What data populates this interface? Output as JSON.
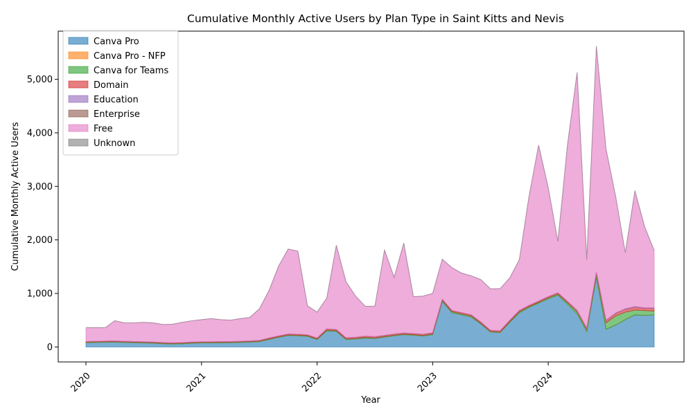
{
  "chart_data": {
    "type": "area",
    "stacked": true,
    "title": "Cumulative Monthly Active Users by Plan Type in Saint Kitts and Nevis",
    "xlabel": "Year",
    "ylabel": "Cumulative Monthly Active Users",
    "x_tick_labels": [
      "2020",
      "2021",
      "2022",
      "2023",
      "2024"
    ],
    "y_tick_labels": [
      "0",
      "1,000",
      "2,000",
      "3,000",
      "4,000",
      "5,000"
    ],
    "y_ticks": [
      0,
      1000,
      2000,
      3000,
      4000,
      5000
    ],
    "ylim": [
      -280,
      5900
    ],
    "grid": false,
    "legend_position": "upper-left",
    "x": [
      "2020-01",
      "2020-02",
      "2020-03",
      "2020-04",
      "2020-05",
      "2020-06",
      "2020-07",
      "2020-08",
      "2020-09",
      "2020-10",
      "2020-11",
      "2020-12",
      "2021-01",
      "2021-02",
      "2021-03",
      "2021-04",
      "2021-05",
      "2021-06",
      "2021-07",
      "2021-08",
      "2021-09",
      "2021-10",
      "2021-11",
      "2021-12",
      "2022-01",
      "2022-02",
      "2022-03",
      "2022-04",
      "2022-05",
      "2022-06",
      "2022-07",
      "2022-08",
      "2022-09",
      "2022-10",
      "2022-11",
      "2022-12",
      "2023-01",
      "2023-02",
      "2023-03",
      "2023-04",
      "2023-05",
      "2023-06",
      "2023-07",
      "2023-08",
      "2023-09",
      "2023-10",
      "2023-11",
      "2023-12",
      "2024-01",
      "2024-02",
      "2024-03",
      "2024-04",
      "2024-05",
      "2024-06",
      "2024-07",
      "2024-08",
      "2024-09",
      "2024-10",
      "2024-11",
      "2024-12"
    ],
    "series": [
      {
        "name": "Canva Pro",
        "color": "#1f77b4",
        "values": [
          80,
          85,
          88,
          90,
          85,
          80,
          75,
          70,
          60,
          55,
          60,
          70,
          75,
          75,
          78,
          80,
          85,
          90,
          100,
          140,
          180,
          215,
          210,
          200,
          140,
          300,
          290,
          140,
          150,
          165,
          160,
          185,
          210,
          230,
          220,
          205,
          230,
          850,
          640,
          600,
          560,
          430,
          280,
          270,
          460,
          640,
          740,
          820,
          900,
          970,
          800,
          620,
          290,
          1300,
          330,
          410,
          510,
          600,
          590,
          600
        ]
      },
      {
        "name": "Canva Pro - NFP",
        "color": "#ff7f0e",
        "values": [
          0,
          0,
          0,
          0,
          0,
          0,
          0,
          0,
          0,
          0,
          0,
          0,
          0,
          0,
          0,
          0,
          0,
          0,
          0,
          0,
          0,
          0,
          0,
          0,
          0,
          0,
          0,
          0,
          0,
          0,
          0,
          0,
          0,
          0,
          0,
          0,
          0,
          0,
          0,
          0,
          0,
          0,
          0,
          0,
          0,
          0,
          0,
          0,
          0,
          0,
          0,
          0,
          0,
          0,
          0,
          0,
          0,
          0,
          0,
          0
        ]
      },
      {
        "name": "Canva for Teams",
        "color": "#2ca02c",
        "values": [
          10,
          10,
          10,
          10,
          10,
          10,
          10,
          10,
          10,
          10,
          10,
          10,
          10,
          10,
          10,
          10,
          10,
          10,
          10,
          10,
          10,
          10,
          10,
          10,
          10,
          15,
          15,
          10,
          10,
          15,
          10,
          10,
          10,
          10,
          10,
          10,
          15,
          20,
          20,
          20,
          20,
          15,
          10,
          10,
          15,
          20,
          15,
          15,
          20,
          20,
          30,
          40,
          40,
          60,
          120,
          170,
          140,
          90,
          90,
          70
        ]
      },
      {
        "name": "Domain",
        "color": "#d62728",
        "values": [
          10,
          10,
          10,
          10,
          10,
          10,
          10,
          10,
          10,
          10,
          10,
          10,
          10,
          10,
          10,
          10,
          10,
          10,
          10,
          15,
          15,
          15,
          15,
          15,
          15,
          20,
          20,
          20,
          20,
          20,
          20,
          20,
          20,
          20,
          20,
          20,
          20,
          20,
          20,
          20,
          20,
          20,
          20,
          20,
          20,
          20,
          20,
          20,
          20,
          20,
          20,
          20,
          20,
          30,
          40,
          45,
          50,
          50,
          40,
          50
        ]
      },
      {
        "name": "Education",
        "color": "#9467bd",
        "values": [
          2,
          2,
          2,
          2,
          2,
          2,
          2,
          2,
          2,
          2,
          2,
          2,
          2,
          2,
          2,
          2,
          2,
          2,
          2,
          2,
          2,
          2,
          2,
          2,
          2,
          2,
          2,
          2,
          2,
          2,
          2,
          2,
          2,
          2,
          2,
          2,
          2,
          2,
          2,
          2,
          2,
          2,
          2,
          2,
          2,
          2,
          2,
          2,
          2,
          2,
          2,
          2,
          2,
          5,
          8,
          10,
          12,
          15,
          12,
          10
        ]
      },
      {
        "name": "Enterprise",
        "color": "#8c564b",
        "values": [
          0,
          0,
          0,
          0,
          0,
          0,
          0,
          0,
          0,
          0,
          0,
          0,
          0,
          0,
          0,
          0,
          0,
          0,
          0,
          0,
          0,
          0,
          0,
          0,
          0,
          0,
          0,
          0,
          0,
          0,
          0,
          0,
          0,
          0,
          0,
          0,
          0,
          0,
          0,
          0,
          0,
          0,
          0,
          0,
          0,
          0,
          0,
          0,
          0,
          0,
          0,
          0,
          0,
          0,
          0,
          0,
          0,
          0,
          0,
          0
        ]
      },
      {
        "name": "Free",
        "color": "#e377c2",
        "values": [
          258,
          253,
          250,
          378,
          343,
          348,
          363,
          358,
          338,
          348,
          378,
          398,
          413,
          433,
          410,
          398,
          423,
          438,
          588,
          883,
          1303,
          1588,
          1553,
          543,
          483,
          573,
          1573,
          1048,
          768,
          558,
          568,
          1593,
          1058,
          1678,
          688,
          713,
          733,
          748,
          798,
          738,
          728,
          793,
          773,
          788,
          793,
          948,
          2033,
          2913,
          2033,
          958,
          2928,
          4448,
          1278,
          4225,
          3200,
          2175,
          1048,
          2165,
          1518,
          1070
        ]
      },
      {
        "name": "Unknown",
        "color": "#7f7f7f",
        "values": [
          0,
          0,
          0,
          0,
          0,
          0,
          0,
          0,
          0,
          0,
          0,
          0,
          0,
          0,
          0,
          0,
          0,
          0,
          0,
          0,
          0,
          0,
          0,
          0,
          0,
          0,
          0,
          0,
          0,
          0,
          0,
          0,
          0,
          0,
          0,
          0,
          0,
          0,
          0,
          0,
          0,
          0,
          0,
          0,
          0,
          0,
          0,
          0,
          0,
          0,
          0,
          0,
          0,
          0,
          0,
          0,
          0,
          0,
          0,
          0
        ]
      }
    ]
  }
}
